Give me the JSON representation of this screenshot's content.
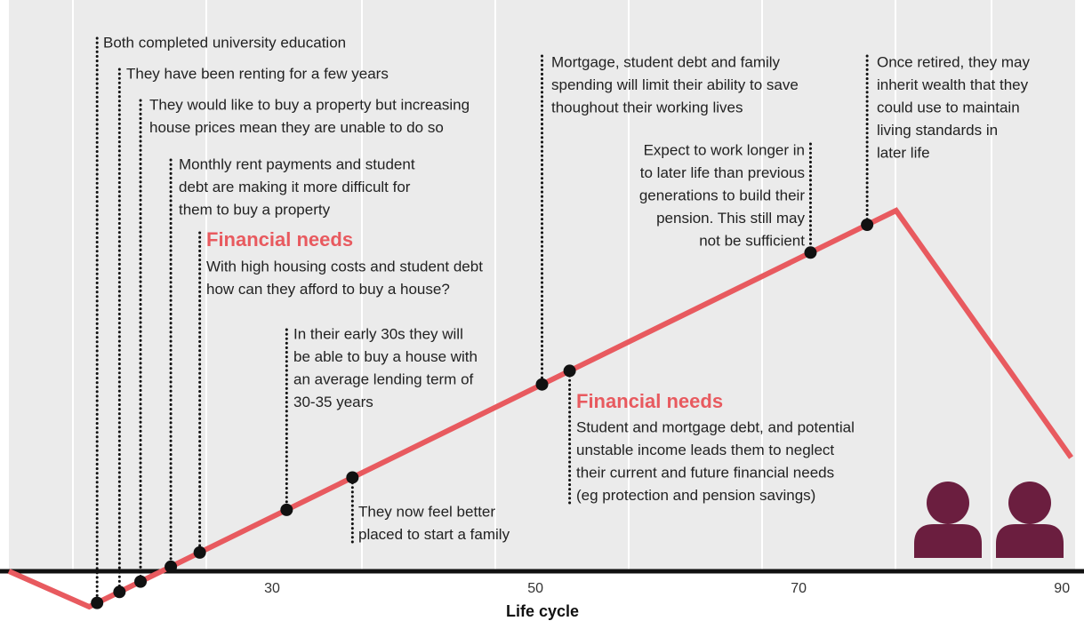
{
  "chart_data": {
    "type": "line",
    "x_label": "Life cycle",
    "xlim": [
      10,
      91
    ],
    "xticks": [
      30,
      50,
      70,
      90
    ],
    "ylim": [
      -5.6,
      63.3
    ],
    "color": "#e85a5f",
    "x": [
      10,
      16.1,
      77.4,
      90.7
    ],
    "values": [
      0,
      -4,
      40.6,
      12.8
    ],
    "events": [
      {
        "x": 16.7,
        "lines": [
          "Both completed university education"
        ]
      },
      {
        "x": 18.4,
        "lines": [
          "They have been renting for a few years"
        ]
      },
      {
        "x": 20.0,
        "lines": [
          "They would like to buy a property but increasing",
          "house prices mean they are unable to do so"
        ]
      },
      {
        "x": 22.3,
        "lines": [
          "Monthly rent payments and student",
          "debt are making it more difficult for",
          "them to buy a property"
        ]
      },
      {
        "x": 24.5,
        "heading": "Financial needs",
        "lines": [
          "With high housing costs and student debt",
          "how can they afford to buy a house?"
        ]
      },
      {
        "x": 31.1,
        "lines": [
          "In their early 30s they will",
          "be able to buy a house with",
          "an average lending term of",
          "30-35 years"
        ]
      },
      {
        "x": 36.1,
        "lines": [
          "They now feel better",
          "placed to start a family"
        ]
      },
      {
        "x": 50.5,
        "lines": [
          "Mortgage, student debt and family",
          "spending will limit their ability to save",
          "thoughout their working lives"
        ]
      },
      {
        "x": 52.6,
        "heading": "Financial needs",
        "lines": [
          "Student and mortgage debt, and potential",
          "unstable income leads them to neglect",
          "their current and future financial needs",
          "(eg protection and pension savings)"
        ]
      },
      {
        "x": 70.9,
        "lines": [
          "Expect to work longer in",
          "to later life than previous",
          "generations to build their",
          "pension. This still may",
          "not be sufficient"
        ]
      },
      {
        "x": 75.2,
        "lines": [
          "Once retired, they may",
          "inherit wealth that they",
          "could use to maintain",
          "living standards in",
          "later life"
        ]
      }
    ]
  }
}
